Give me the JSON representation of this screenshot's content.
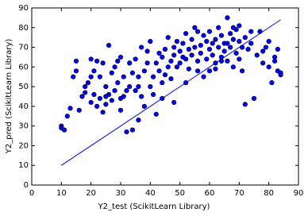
{
  "chart_data": {
    "type": "scatter",
    "xlabel": "Y2_test (ScikitLearn Library)",
    "ylabel": "Y2_pred (ScikitLearn Library)",
    "xlim": [
      0,
      90
    ],
    "ylim": [
      0,
      90
    ],
    "xticks": [
      0,
      10,
      20,
      30,
      40,
      50,
      60,
      70,
      80,
      90
    ],
    "yticks": [
      0,
      10,
      20,
      30,
      40,
      50,
      60,
      70,
      80,
      90
    ],
    "series": [
      {
        "type": "line",
        "color": "#0000ff",
        "x": [
          10,
          84
        ],
        "values": [
          10,
          84
        ]
      },
      {
        "type": "scatter",
        "color": "#0000ff",
        "x": [
          10,
          10,
          11,
          12,
          13,
          14,
          15,
          15,
          16,
          17,
          18,
          18,
          19,
          20,
          20,
          21,
          21,
          22,
          22,
          23,
          23,
          24,
          24,
          25,
          25,
          26,
          26,
          27,
          27,
          28,
          28,
          29,
          29,
          30,
          30,
          31,
          31,
          32,
          32,
          33,
          33,
          34,
          34,
          35,
          35,
          36,
          36,
          37,
          37,
          38,
          38,
          39,
          39,
          40,
          40,
          41,
          41,
          42,
          42,
          43,
          43,
          44,
          44,
          45,
          45,
          46,
          46,
          47,
          47,
          48,
          48,
          49,
          49,
          50,
          50,
          51,
          51,
          52,
          52,
          53,
          53,
          54,
          54,
          55,
          55,
          56,
          56,
          57,
          57,
          58,
          58,
          59,
          59,
          60,
          60,
          61,
          61,
          62,
          62,
          63,
          63,
          64,
          64,
          65,
          65,
          66,
          66,
          67,
          67,
          68,
          68,
          69,
          69,
          70,
          70,
          71,
          71,
          72,
          72,
          73,
          74,
          75,
          76,
          77,
          78,
          79,
          80,
          80,
          81,
          82,
          83,
          83,
          84,
          84,
          36,
          44,
          52,
          60,
          62,
          64,
          30,
          25,
          20,
          48,
          56,
          66,
          68,
          70,
          74,
          78,
          82
        ],
        "values": [
          30,
          29,
          28,
          35,
          39,
          55,
          63,
          58,
          38,
          45,
          50,
          47,
          52,
          42,
          64,
          46,
          58,
          40,
          63,
          44,
          55,
          37,
          62,
          50,
          41,
          71,
          46,
          43,
          57,
          60,
          48,
          52,
          63,
          44,
          65,
          45,
          55,
          27,
          48,
          62,
          50,
          28,
          57,
          48,
          64,
          33,
          55,
          70,
          45,
          58,
          40,
          62,
          68,
          50,
          73,
          55,
          46,
          62,
          36,
          58,
          67,
          52,
          65,
          69,
          56,
          75,
          60,
          63,
          54,
          66,
          70,
          60,
          73,
          62,
          68,
          65,
          72,
          64,
          77,
          69,
          59,
          74,
          66,
          80,
          70,
          63,
          78,
          71,
          67,
          76,
          55,
          64,
          73,
          69,
          78,
          66,
          72,
          74,
          59,
          70,
          80,
          65,
          76,
          72,
          68,
          85,
          63,
          70,
          77,
          74,
          60,
          67,
          79,
          73,
          64,
          58,
          70,
          75,
          41,
          69,
          72,
          44,
          66,
          78,
          62,
          70,
          60,
          73,
          52,
          65,
          58,
          69,
          57,
          56,
          50,
          44,
          52,
          58,
          62,
          63,
          38,
          45,
          55,
          42,
          58,
          72,
          80,
          81,
          78,
          68,
          63
        ]
      }
    ]
  }
}
